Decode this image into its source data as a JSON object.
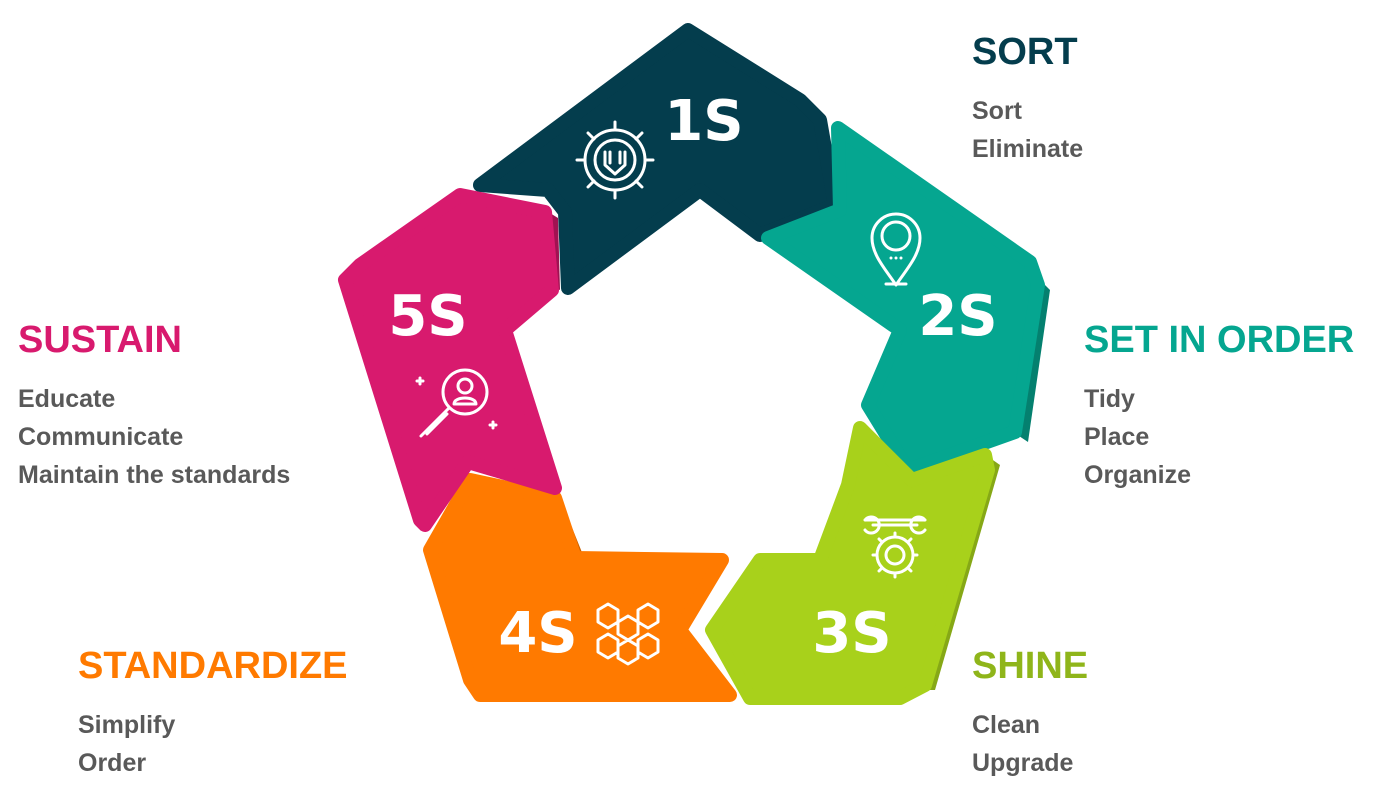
{
  "colors": {
    "sort": "#043d4d",
    "set_in_order": "#05a690",
    "shine": "#a8d11b",
    "standardize": "#ff7a00",
    "sustain": "#d81a6e",
    "text": "#595959"
  },
  "segments": [
    {
      "key": "sort",
      "label": "1S",
      "icon": "gear-icon"
    },
    {
      "key": "set_in_order",
      "label": "2S",
      "icon": "location-pin-icon"
    },
    {
      "key": "shine",
      "label": "3S",
      "icon": "wrench-gear-icon"
    },
    {
      "key": "standardize",
      "label": "4S",
      "icon": "molecule-icon"
    },
    {
      "key": "sustain",
      "label": "5S",
      "icon": "magnifier-person-icon"
    }
  ],
  "pillars": {
    "sort": {
      "title": "SORT",
      "items": [
        "Sort",
        "Eliminate"
      ]
    },
    "set_in_order": {
      "title": "SET IN ORDER",
      "items": [
        "Tidy",
        "Place",
        "Organize"
      ]
    },
    "shine": {
      "title": "SHINE",
      "items": [
        "Clean",
        "Upgrade"
      ]
    },
    "standardize": {
      "title": "STANDARDIZE",
      "items": [
        "Simplify",
        "Order"
      ]
    },
    "sustain": {
      "title": "SUSTAIN",
      "items": [
        "Educate",
        "Communicate",
        "Maintain the standards"
      ]
    }
  }
}
